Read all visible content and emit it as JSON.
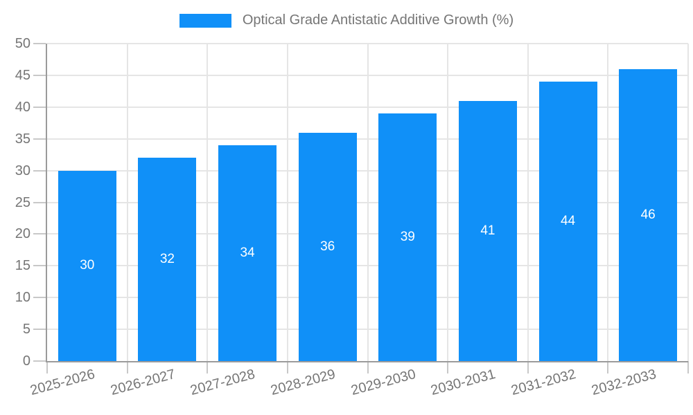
{
  "legend": {
    "label": "Optical Grade Antistatic Additive Growth (%)"
  },
  "colors": {
    "bar": "#1090f8",
    "grid": "#e5e5e5",
    "axis": "#9b9b9b",
    "tick": "#c8c8c8",
    "text": "#757575",
    "bar_label": "#ffffff"
  },
  "chart_data": {
    "type": "bar",
    "title": "Optical Grade Antistatic Additive Growth (%)",
    "categories": [
      "2025-2026",
      "2026-2027",
      "2027-2028",
      "2028-2029",
      "2029-2030",
      "2030-2031",
      "2031-2032",
      "2032-2033"
    ],
    "values": [
      30,
      32,
      34,
      36,
      39,
      41,
      44,
      46
    ],
    "xlabel": "",
    "ylabel": "",
    "ylim": [
      0,
      50
    ],
    "ytick_step": 5,
    "ytick_labels": [
      "0",
      "5",
      "10",
      "15",
      "20",
      "25",
      "30",
      "35",
      "40",
      "45",
      "50"
    ],
    "grid": "horizontal and vertical",
    "legend_position": "top-center",
    "value_labels": "inside-center",
    "x_label_rotation_deg": -15
  }
}
